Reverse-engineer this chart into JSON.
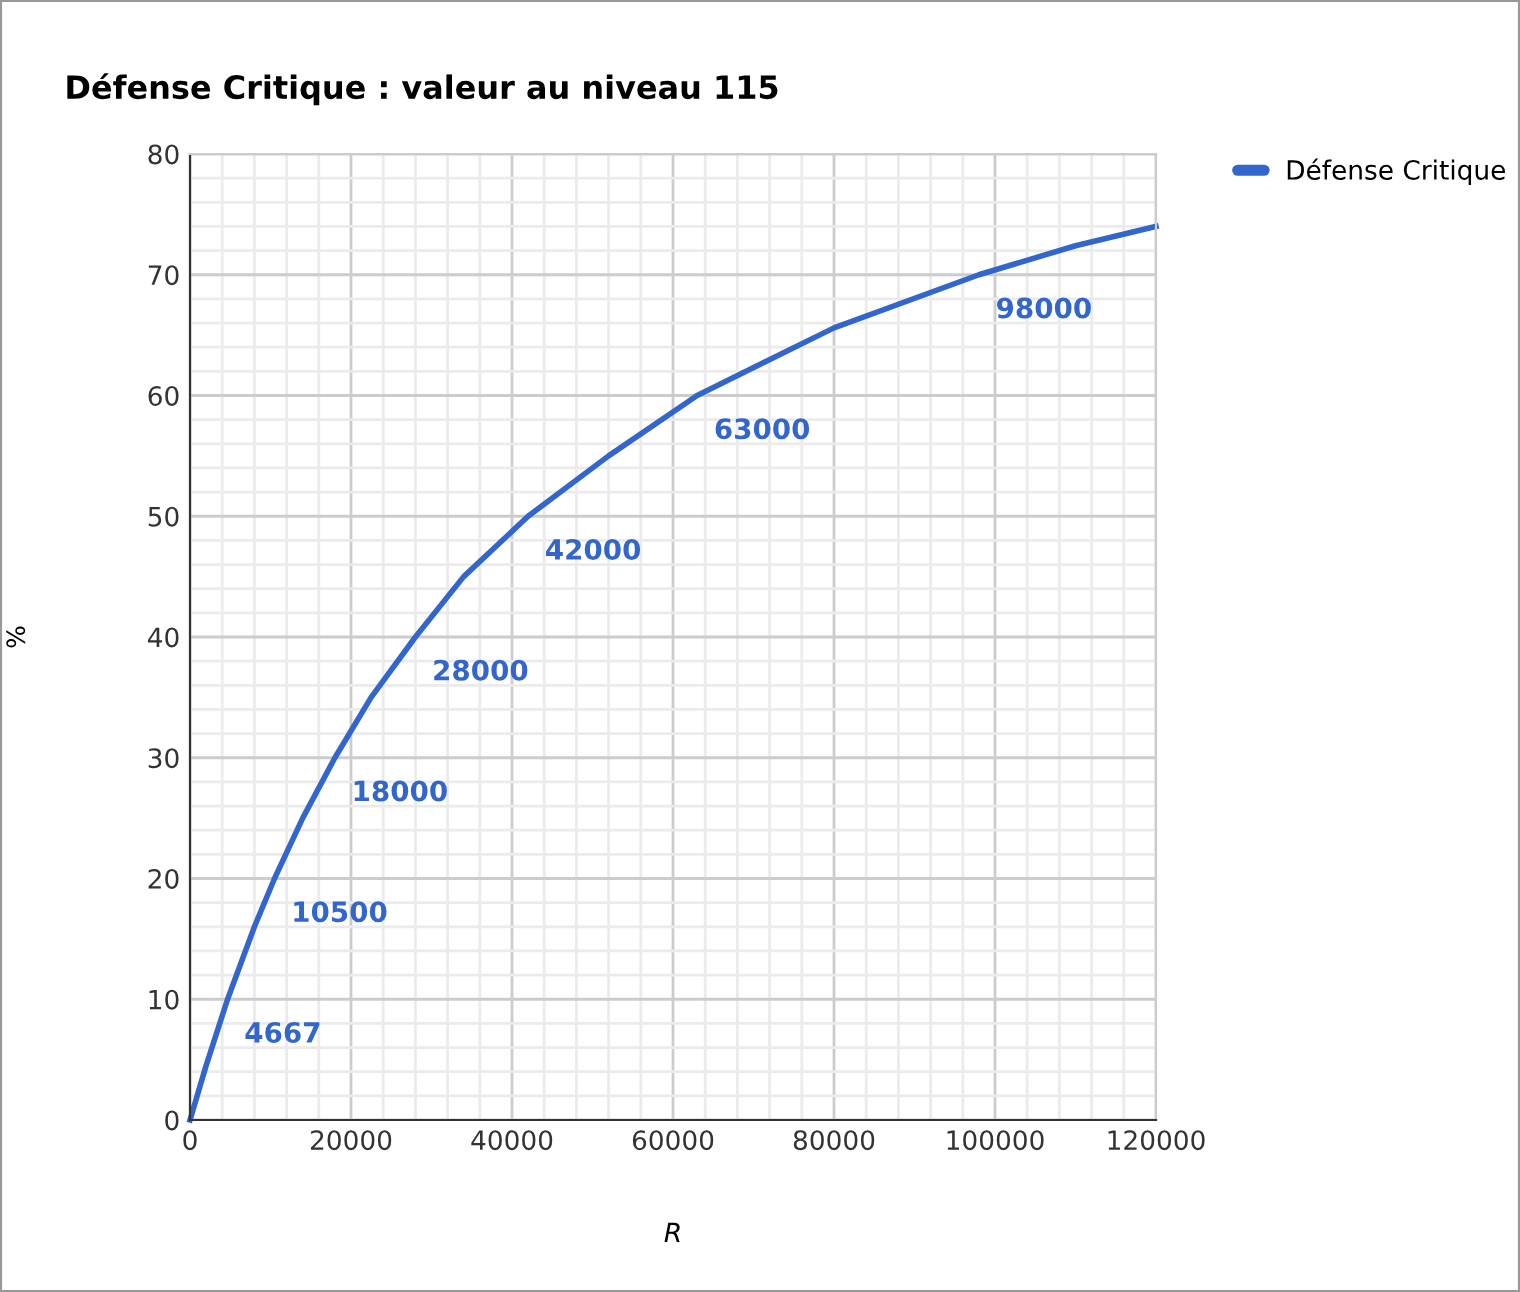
{
  "chart_data": {
    "type": "line",
    "title": "Défense Critique : valeur au niveau 115",
    "xlabel": "R",
    "ylabel": "%",
    "series": [
      {
        "name": "Défense Critique",
        "color": "#3366cc",
        "x": [
          0,
          2000,
          4667,
          8000,
          10500,
          14000,
          18000,
          22500,
          28000,
          34000,
          42000,
          52000,
          63000,
          80000,
          98000,
          110000,
          120000
        ],
        "values": [
          0,
          4.5,
          10,
          16,
          20,
          25,
          30,
          35,
          40,
          45,
          50,
          55,
          60,
          65.6,
          70,
          72.4,
          74
        ]
      }
    ],
    "annotations": [
      {
        "text": "4667",
        "x": 4667,
        "y": 10
      },
      {
        "text": "10500",
        "x": 10500,
        "y": 20
      },
      {
        "text": "18000",
        "x": 18000,
        "y": 30
      },
      {
        "text": "28000",
        "x": 28000,
        "y": 40
      },
      {
        "text": "42000",
        "x": 42000,
        "y": 50
      },
      {
        "text": "63000",
        "x": 63000,
        "y": 60
      },
      {
        "text": "98000",
        "x": 98000,
        "y": 70
      }
    ],
    "xlim": [
      0,
      120000
    ],
    "xticks": [
      0,
      20000,
      40000,
      60000,
      80000,
      100000,
      120000
    ],
    "ylim": [
      0,
      80
    ],
    "yticks": [
      0,
      10,
      20,
      30,
      40,
      50,
      60,
      70,
      80
    ],
    "grid": true,
    "legend": "top right",
    "marker": "none",
    "line_style": "solid"
  }
}
